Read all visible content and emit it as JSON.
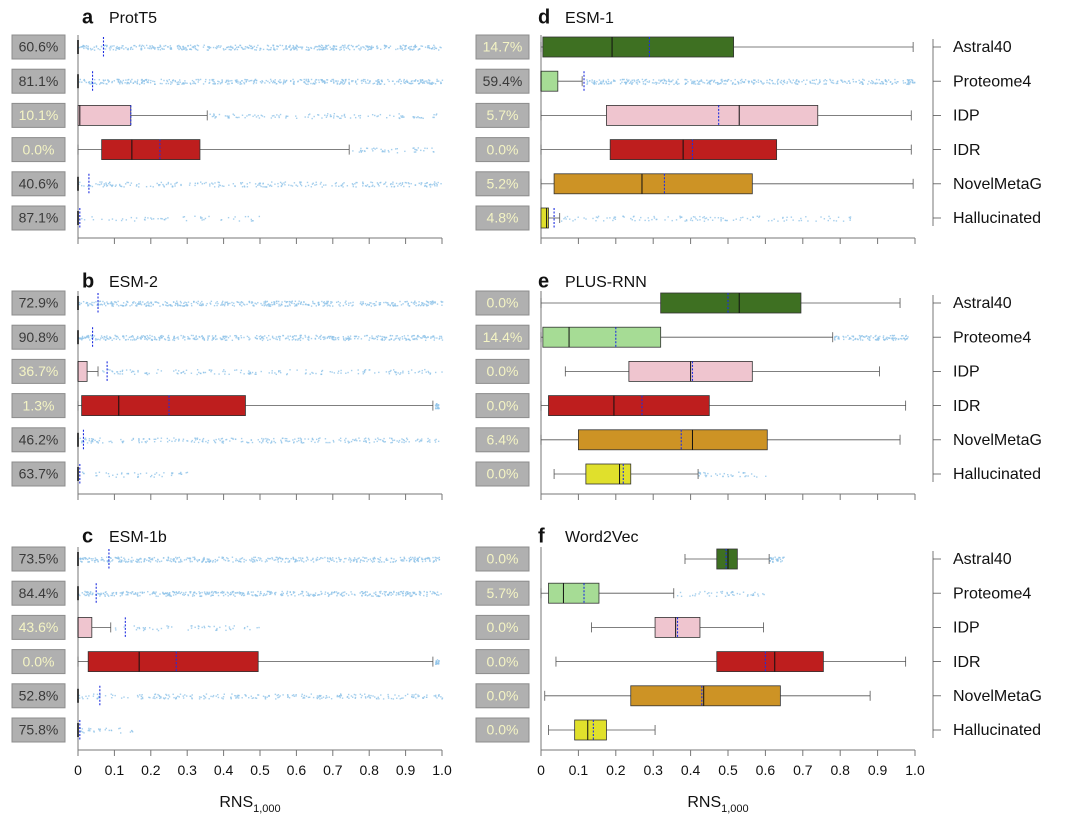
{
  "chart_data": {
    "type": "box",
    "xlabel": "RNS",
    "xlabel_sub": "1,000",
    "xlim": [
      0,
      1
    ],
    "xticks": [
      "0",
      "0.1",
      "0.2",
      "0.3",
      "0.4",
      "0.5",
      "0.6",
      "0.7",
      "0.8",
      "0.9",
      "1.0"
    ],
    "categories": [
      "Astral40",
      "Proteome4",
      "IDP",
      "IDR",
      "NovelMetaG",
      "Hallucinated"
    ],
    "colors": {
      "Astral40": "#3e7022",
      "Proteome4": "#a6dc95",
      "IDP": "#efc5cf",
      "IDR": "#be1e1e",
      "NovelMetaG": "#cd9325",
      "Hallucinated": "#e0e02c",
      "scatter": "#8ec3e8",
      "mean": "#1f2fe0",
      "badge_bg": "#b0b0b0",
      "badge_text_dark": "#3a3a3a",
      "badge_text_light": "#f4f4c4"
    },
    "panels": [
      {
        "letter": "a",
        "title": "ProtT5",
        "rows": [
          {
            "badge": "60.6%",
            "q1": 0,
            "median": 0,
            "q3": 0.001,
            "wlo": 0,
            "whi": 0,
            "mean": 0.07,
            "scatter": [
              0,
              1
            ],
            "dense": 1
          },
          {
            "badge": "81.1%",
            "q1": 0,
            "median": 0,
            "q3": 0.001,
            "wlo": 0,
            "whi": 0,
            "mean": 0.04,
            "scatter": [
              0,
              1
            ],
            "dense": 1
          },
          {
            "badge": "10.1%",
            "q1": 0,
            "median": 0.005,
            "q3": 0.145,
            "wlo": 0,
            "whi": 0.355,
            "mean": 0.145,
            "scatter": [
              0.36,
              0.99
            ],
            "dense": 0.35
          },
          {
            "badge": "0.0%",
            "q1": 0.065,
            "median": 0.148,
            "q3": 0.335,
            "wlo": 0,
            "whi": 0.745,
            "mean": 0.225,
            "scatter": [
              0.75,
              0.98
            ],
            "dense": 0.25
          },
          {
            "badge": "40.6%",
            "q1": 0,
            "median": 0,
            "q3": 0.001,
            "wlo": 0,
            "whi": 0,
            "mean": 0.03,
            "scatter": [
              0,
              1
            ],
            "dense": 0.55
          },
          {
            "badge": "87.1%",
            "q1": 0,
            "median": 0,
            "q3": 0.001,
            "wlo": 0,
            "whi": 0,
            "mean": 0.005,
            "scatter": [
              0,
              0.5
            ],
            "dense": 0.15
          }
        ]
      },
      {
        "letter": "b",
        "title": "ESM-2",
        "rows": [
          {
            "badge": "72.9%",
            "q1": 0,
            "median": 0,
            "q3": 0.001,
            "wlo": 0,
            "whi": 0,
            "mean": 0.055,
            "scatter": [
              0,
              1
            ],
            "dense": 1
          },
          {
            "badge": "90.8%",
            "q1": 0,
            "median": 0,
            "q3": 0.001,
            "wlo": 0,
            "whi": 0,
            "mean": 0.04,
            "scatter": [
              0,
              1
            ],
            "dense": 1
          },
          {
            "badge": "36.7%",
            "q1": 0,
            "median": 0,
            "q3": 0.025,
            "wlo": 0,
            "whi": 0.055,
            "mean": 0.08,
            "scatter": [
              0.06,
              1
            ],
            "dense": 0.35
          },
          {
            "badge": "1.3%",
            "q1": 0.01,
            "median": 0.112,
            "q3": 0.46,
            "wlo": 0,
            "whi": 0.975,
            "mean": 0.25,
            "scatter": [
              0.98,
              0.99
            ],
            "dense": 0.05
          },
          {
            "badge": "46.2%",
            "q1": 0,
            "median": 0,
            "q3": 0.001,
            "wlo": 0,
            "whi": 0,
            "mean": 0.015,
            "scatter": [
              0,
              1
            ],
            "dense": 0.55
          },
          {
            "badge": "63.7%",
            "q1": 0,
            "median": 0,
            "q3": 0.001,
            "wlo": 0,
            "whi": 0,
            "mean": 0.005,
            "scatter": [
              0,
              0.3
            ],
            "dense": 0.2
          }
        ]
      },
      {
        "letter": "c",
        "title": "ESM-1b",
        "rows": [
          {
            "badge": "73.5%",
            "q1": 0,
            "median": 0,
            "q3": 0.001,
            "wlo": 0,
            "whi": 0,
            "mean": 0.085,
            "scatter": [
              0,
              1
            ],
            "dense": 1
          },
          {
            "badge": "84.4%",
            "q1": 0,
            "median": 0,
            "q3": 0.001,
            "wlo": 0,
            "whi": 0,
            "mean": 0.05,
            "scatter": [
              0,
              1
            ],
            "dense": 1
          },
          {
            "badge": "43.6%",
            "q1": 0,
            "median": 0,
            "q3": 0.038,
            "wlo": 0,
            "whi": 0.09,
            "mean": 0.13,
            "scatter": [
              0.1,
              0.5
            ],
            "dense": 0.2
          },
          {
            "badge": "0.0%",
            "q1": 0.028,
            "median": 0.168,
            "q3": 0.495,
            "wlo": 0,
            "whi": 0.975,
            "mean": 0.27,
            "scatter": [
              0.98,
              0.99
            ],
            "dense": 0.05
          },
          {
            "badge": "52.8%",
            "q1": 0,
            "median": 0,
            "q3": 0.001,
            "wlo": 0,
            "whi": 0,
            "mean": 0.06,
            "scatter": [
              0,
              1
            ],
            "dense": 0.55
          },
          {
            "badge": "75.8%",
            "q1": 0,
            "median": 0,
            "q3": 0.001,
            "wlo": 0,
            "whi": 0,
            "mean": 0.005,
            "scatter": [
              0,
              0.15
            ],
            "dense": 0.15
          }
        ]
      },
      {
        "letter": "d",
        "title": "ESM-1",
        "rows": [
          {
            "badge": "14.7%",
            "q1": 0.005,
            "median": 0.19,
            "q3": 0.515,
            "wlo": 0,
            "whi": 0.995,
            "mean": 0.29,
            "scatter": [],
            "dense": 0
          },
          {
            "badge": "59.4%",
            "q1": 0,
            "median": 0,
            "q3": 0.045,
            "wlo": 0,
            "whi": 0.11,
            "mean": 0.115,
            "scatter": [
              0.12,
              1
            ],
            "dense": 1
          },
          {
            "badge": "5.7%",
            "q1": 0.175,
            "median": 0.53,
            "q3": 0.74,
            "wlo": 0,
            "whi": 0.99,
            "mean": 0.475,
            "scatter": [],
            "dense": 0
          },
          {
            "badge": "0.0%",
            "q1": 0.185,
            "median": 0.38,
            "q3": 0.63,
            "wlo": 0,
            "whi": 0.99,
            "mean": 0.405,
            "scatter": [],
            "dense": 0
          },
          {
            "badge": "5.2%",
            "q1": 0.035,
            "median": 0.27,
            "q3": 0.565,
            "wlo": 0,
            "whi": 0.995,
            "mean": 0.33,
            "scatter": [],
            "dense": 0
          },
          {
            "badge": "4.8%",
            "q1": 0,
            "median": 0.015,
            "q3": 0.02,
            "wlo": 0,
            "whi": 0.05,
            "mean": 0.035,
            "scatter": [
              0.05,
              0.85
            ],
            "dense": 0.3
          }
        ]
      },
      {
        "letter": "e",
        "title": "PLUS-RNN",
        "rows": [
          {
            "badge": "0.0%",
            "q1": 0.32,
            "median": 0.53,
            "q3": 0.695,
            "wlo": 0,
            "whi": 0.96,
            "mean": 0.5,
            "scatter": [],
            "dense": 0
          },
          {
            "badge": "14.4%",
            "q1": 0.005,
            "median": 0.075,
            "q3": 0.32,
            "wlo": 0,
            "whi": 0.78,
            "mean": 0.2,
            "scatter": [
              0.78,
              0.98
            ],
            "dense": 1
          },
          {
            "badge": "0.0%",
            "q1": 0.235,
            "median": 0.4,
            "q3": 0.565,
            "wlo": 0.065,
            "whi": 0.905,
            "mean": 0.405,
            "scatter": [],
            "dense": 0
          },
          {
            "badge": "0.0%",
            "q1": 0.02,
            "median": 0.195,
            "q3": 0.45,
            "wlo": 0,
            "whi": 0.975,
            "mean": 0.27,
            "scatter": [],
            "dense": 0
          },
          {
            "badge": "6.4%",
            "q1": 0.1,
            "median": 0.405,
            "q3": 0.605,
            "wlo": 0,
            "whi": 0.96,
            "mean": 0.375,
            "scatter": [],
            "dense": 0
          },
          {
            "badge": "0.0%",
            "q1": 0.12,
            "median": 0.21,
            "q3": 0.24,
            "wlo": 0.035,
            "whi": 0.42,
            "mean": 0.22,
            "scatter": [
              0.42,
              0.6
            ],
            "dense": 0.2
          }
        ]
      },
      {
        "letter": "f",
        "title": "Word2Vec",
        "rows": [
          {
            "badge": "0.0%",
            "q1": 0.47,
            "median": 0.5,
            "q3": 0.525,
            "wlo": 0.385,
            "whi": 0.61,
            "mean": 0.495,
            "scatter": [
              0.61,
              0.65
            ],
            "dense": 0.6
          },
          {
            "badge": "5.7%",
            "q1": 0.02,
            "median": 0.06,
            "q3": 0.155,
            "wlo": 0,
            "whi": 0.355,
            "mean": 0.115,
            "scatter": [
              0.36,
              0.6
            ],
            "dense": 0.25
          },
          {
            "badge": "0.0%",
            "q1": 0.305,
            "median": 0.36,
            "q3": 0.425,
            "wlo": 0.135,
            "whi": 0.595,
            "mean": 0.365,
            "scatter": [],
            "dense": 0
          },
          {
            "badge": "0.0%",
            "q1": 0.47,
            "median": 0.625,
            "q3": 0.755,
            "wlo": 0.04,
            "whi": 0.975,
            "mean": 0.6,
            "scatter": [],
            "dense": 0
          },
          {
            "badge": "0.0%",
            "q1": 0.24,
            "median": 0.435,
            "q3": 0.64,
            "wlo": 0.01,
            "whi": 0.88,
            "mean": 0.43,
            "scatter": [],
            "dense": 0
          },
          {
            "badge": "0.0%",
            "q1": 0.09,
            "median": 0.125,
            "q3": 0.175,
            "wlo": 0.02,
            "whi": 0.305,
            "mean": 0.14,
            "scatter": [],
            "dense": 0
          }
        ]
      }
    ]
  }
}
